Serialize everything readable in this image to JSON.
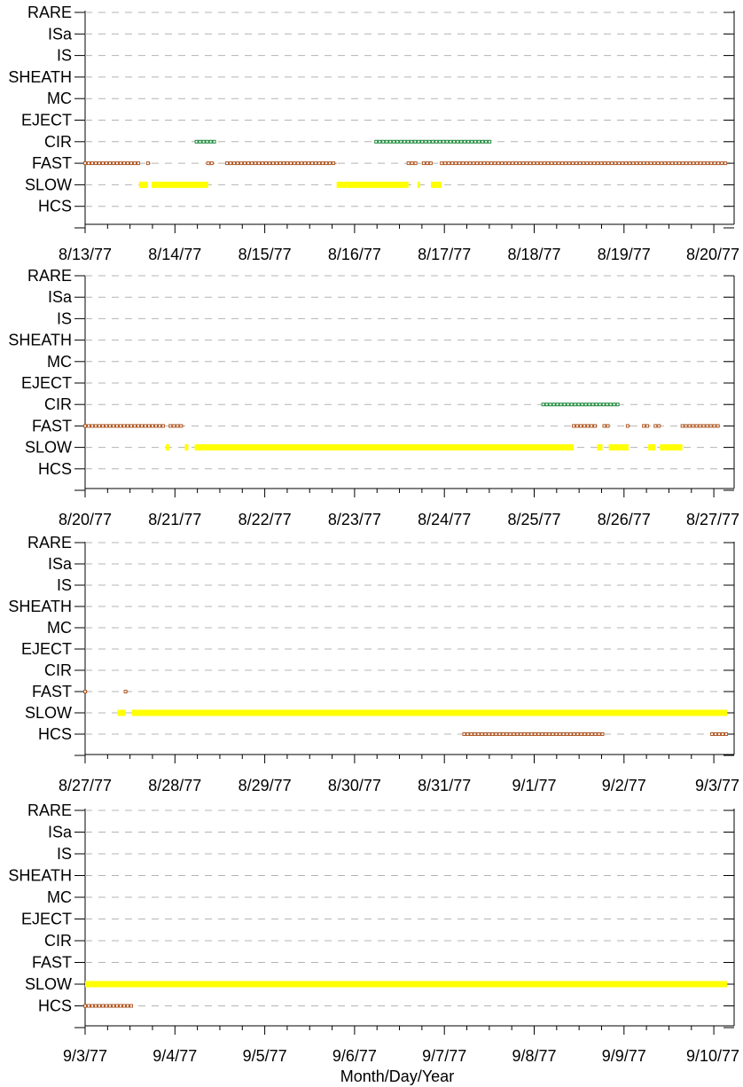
{
  "chart_data": {
    "type": "scatter",
    "xlabel": "Month/Day/Year",
    "colors": {
      "FAST": "#b05a28",
      "SLOW": "#ffff00",
      "CIR": "#1e8a3c",
      "HCS": "#b05a28"
    },
    "categories": [
      "RARE",
      "ISa",
      "IS",
      "SHEATH",
      "MC",
      "EJECT",
      "CIR",
      "FAST",
      "SLOW",
      "HCS"
    ],
    "panels": [
      {
        "ticks": [
          "8/13/77",
          "8/14/77",
          "8/15/77",
          "8/16/77",
          "8/17/77",
          "8/18/77",
          "8/19/77",
          "8/20/77"
        ],
        "xlim_days": [
          0,
          7.15
        ],
        "series": [
          {
            "name": "CIR",
            "segments": [
              [
                1.24,
                1.44
              ],
              [
                3.24,
                4.52
              ]
            ]
          },
          {
            "name": "FAST",
            "segments": [
              [
                0.0,
                0.6
              ],
              [
                0.7,
                0.72
              ],
              [
                1.37,
                1.44
              ],
              [
                1.58,
                2.8
              ],
              [
                3.6,
                3.7
              ],
              [
                3.77,
                3.85
              ],
              [
                3.97,
                7.15
              ]
            ]
          },
          {
            "name": "SLOW",
            "segments": [
              [
                0.6,
                0.7
              ],
              [
                0.74,
                1.37
              ],
              [
                2.8,
                3.6
              ],
              [
                3.7,
                3.73
              ],
              [
                3.85,
                3.97
              ]
            ]
          }
        ]
      },
      {
        "ticks": [
          "8/20/77",
          "8/21/77",
          "8/22/77",
          "8/23/77",
          "8/24/77",
          "8/25/77",
          "8/26/77",
          "8/27/77"
        ],
        "xlim_days": [
          0,
          7.15
        ],
        "series": [
          {
            "name": "CIR",
            "segments": [
              [
                5.1,
                5.94
              ]
            ]
          },
          {
            "name": "FAST",
            "segments": [
              [
                0.0,
                0.88
              ],
              [
                0.95,
                1.1
              ],
              [
                5.44,
                5.7
              ],
              [
                5.78,
                5.83
              ],
              [
                6.04,
                6.07
              ],
              [
                6.22,
                6.27
              ],
              [
                6.35,
                6.39
              ],
              [
                6.65,
                7.07
              ]
            ]
          },
          {
            "name": "SLOW",
            "segments": [
              [
                0.9,
                0.94
              ],
              [
                1.11,
                1.15
              ],
              [
                1.22,
                5.44
              ],
              [
                5.7,
                5.76
              ],
              [
                5.83,
                6.05
              ],
              [
                6.27,
                6.35
              ],
              [
                6.4,
                6.65
              ]
            ]
          }
        ]
      },
      {
        "ticks": [
          "8/27/77",
          "8/28/77",
          "8/29/77",
          "8/30/77",
          "8/31/77",
          "9/1/77",
          "9/2/77",
          "9/3/77"
        ],
        "xlim_days": [
          0,
          7.15
        ],
        "series": [
          {
            "name": "FAST",
            "segments": [
              [
                0.0,
                0.03
              ],
              [
                0.45,
                0.48
              ]
            ]
          },
          {
            "name": "SLOW",
            "segments": [
              [
                0.36,
                0.45
              ],
              [
                0.52,
                7.15
              ]
            ]
          },
          {
            "name": "HCS",
            "segments": [
              [
                4.22,
                5.77
              ],
              [
                6.98,
                7.15
              ]
            ]
          }
        ]
      },
      {
        "ticks": [
          "9/3/77",
          "9/4/77",
          "9/5/77",
          "9/6/77",
          "9/7/77",
          "9/8/77",
          "9/9/77",
          "9/10/77"
        ],
        "xlim_days": [
          0,
          7.15
        ],
        "series": [
          {
            "name": "SLOW",
            "segments": [
              [
                0.0,
                7.15
              ]
            ]
          },
          {
            "name": "HCS",
            "segments": [
              [
                0.0,
                0.52
              ]
            ]
          }
        ]
      }
    ]
  }
}
